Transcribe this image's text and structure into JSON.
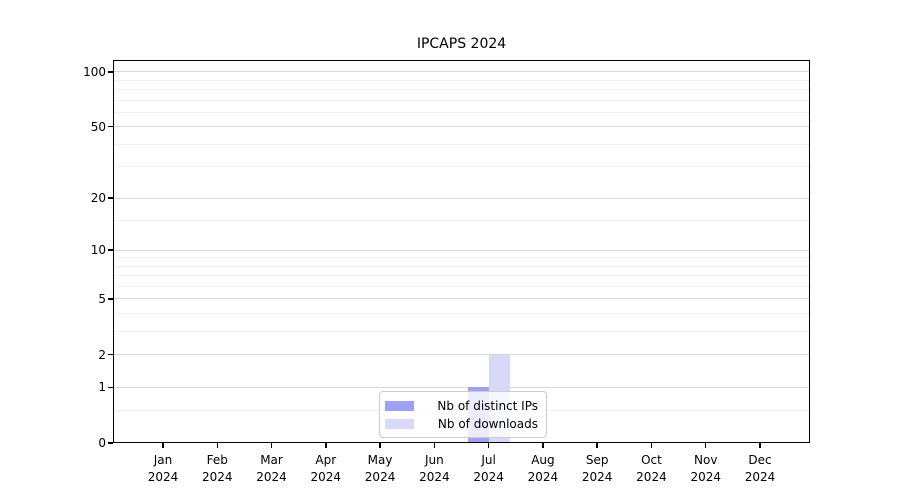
{
  "title": "IPCAPS 2024",
  "chart_data": {
    "type": "bar",
    "title": "IPCAPS 2024",
    "categories": [
      "Jan 2024",
      "Feb 2024",
      "Mar 2024",
      "Apr 2024",
      "May 2024",
      "Jun 2024",
      "Jul 2024",
      "Aug 2024",
      "Sep 2024",
      "Oct 2024",
      "Nov 2024",
      "Dec 2024"
    ],
    "series": [
      {
        "name": "Nb of distinct IPs",
        "color": "#a0a0f0",
        "values": [
          0,
          0,
          0,
          0,
          0,
          0,
          1,
          0,
          0,
          0,
          0,
          0
        ]
      },
      {
        "name": "Nb of downloads",
        "color": "#d8d8f8",
        "values": [
          0,
          0,
          0,
          0,
          0,
          0,
          2,
          0,
          0,
          0,
          0,
          0
        ]
      }
    ],
    "xlabel": "",
    "ylabel": "",
    "yscale": "log1p",
    "yticks": [
      0,
      1,
      2,
      5,
      10,
      20,
      50,
      100
    ],
    "minor_ticks": [
      0.5,
      3,
      4,
      6,
      7,
      8,
      9,
      15,
      30,
      40,
      60,
      70,
      80,
      90
    ],
    "ylim": [
      0,
      116
    ],
    "grid": true,
    "legend_position": "bottom-center"
  }
}
